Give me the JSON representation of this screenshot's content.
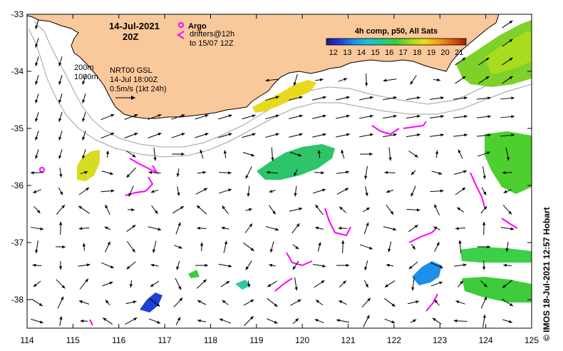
{
  "title": {
    "date": "14-Jul-2021",
    "time": "20Z"
  },
  "legend": {
    "argo_label": "Argo",
    "drifters_line1": "drifters@12h",
    "drifters_line2": "to 15/07 12Z",
    "argo_color": "#ff00ff",
    "drifter_color": "#ff00ff"
  },
  "contours": {
    "label_200m": "200m",
    "label_1000m": "1000m"
  },
  "velocity": {
    "product": "NRT00 GSL",
    "time": "14-Jul 18:00Z",
    "scale": "0.5m/s (1kt 24h)"
  },
  "colorbar": {
    "title": "4h comp, p50, All Sats",
    "ticks": [
      "12",
      "13",
      "14",
      "15",
      "16",
      "17",
      "18",
      "19",
      "20",
      "21"
    ],
    "min": 11.5,
    "max": 21.5,
    "colors": [
      "#1a1a8c",
      "#1f3fd6",
      "#1f8fe8",
      "#19c3d8",
      "#22c98a",
      "#3fcc3c",
      "#9ad91e",
      "#e8e019",
      "#f0a018",
      "#e05a14",
      "#a01e10"
    ]
  },
  "axes": {
    "x_ticks": [
      "114",
      "115",
      "116",
      "117",
      "118",
      "119",
      "120",
      "121",
      "122",
      "123",
      "124",
      "125"
    ],
    "y_ticks": [
      "-33",
      "-34",
      "-35",
      "-36",
      "-37",
      "-38"
    ],
    "lon_range": [
      114,
      125
    ],
    "lat_range": [
      -38.5,
      -33
    ]
  },
  "credit": "© IMOS 18-Jul-2021 12:57 Hobart",
  "colors": {
    "land": "#f9c89b",
    "coast": "#000000",
    "shelf": "#a0a0a0",
    "arrow": "#000000"
  }
}
